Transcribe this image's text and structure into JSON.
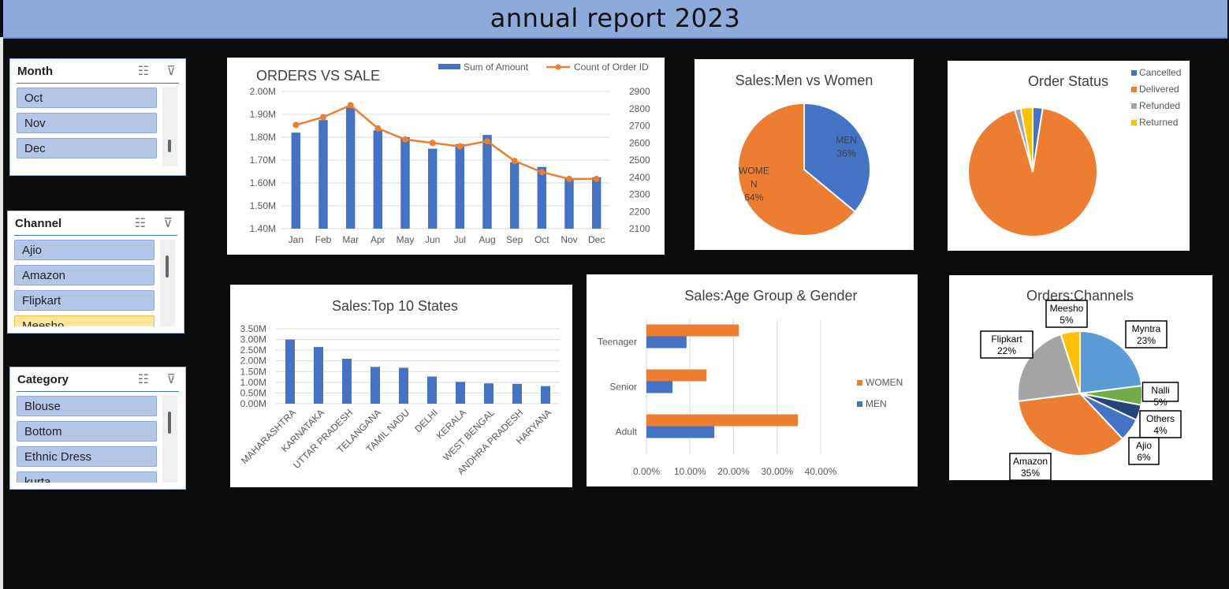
{
  "header": {
    "title": "annual report 2023"
  },
  "slicers": [
    {
      "title": "Month",
      "items": [
        "Oct",
        "Nov",
        "Dec"
      ],
      "selected": []
    },
    {
      "title": "Channel",
      "items": [
        "Ajio",
        "Amazon",
        "Flipkart",
        "Meesho"
      ],
      "selected": [
        "Meesho"
      ]
    },
    {
      "title": "Category",
      "items": [
        "Blouse",
        "Bottom",
        "Ethnic Dress",
        "kurta"
      ],
      "selected": []
    }
  ],
  "chart_data": [
    {
      "id": "orders-vs-sale",
      "type": "bar",
      "title": "ORDERS VS SALE",
      "categories": [
        "Jan",
        "Feb",
        "Mar",
        "Apr",
        "May",
        "Jun",
        "Jul",
        "Aug",
        "Sep",
        "Oct",
        "Nov",
        "Dec"
      ],
      "series": [
        {
          "name": "Sum of Amount",
          "kind": "bar",
          "axis": "left",
          "color": "#4472c4",
          "values": [
            1.82,
            1.875,
            1.93,
            1.83,
            1.8,
            1.75,
            1.77,
            1.81,
            1.69,
            1.67,
            1.62,
            1.625
          ]
        },
        {
          "name": "Count of Order ID",
          "kind": "line",
          "axis": "right",
          "color": "#ed7d31",
          "values": [
            2705,
            2750,
            2820,
            2685,
            2620,
            2600,
            2580,
            2610,
            2495,
            2430,
            2390,
            2390
          ]
        }
      ],
      "ylim": [
        1.4,
        2.0
      ],
      "yticks": [
        "1.40M",
        "1.50M",
        "1.60M",
        "1.70M",
        "1.80M",
        "1.90M",
        "2.00M"
      ],
      "y2lim": [
        2100,
        2900
      ],
      "y2ticks": [
        "2100",
        "2200",
        "2300",
        "2400",
        "2500",
        "2600",
        "2700",
        "2800",
        "2900"
      ],
      "legend": "top-right"
    },
    {
      "id": "men-vs-women",
      "type": "pie",
      "title": "Sales:Men vs Women",
      "slices": [
        {
          "label": "MEN",
          "value": 36,
          "display": "36%",
          "color": "#4472c4"
        },
        {
          "label": "WOMEN",
          "value": 64,
          "display": "64%",
          "color": "#ed7d31"
        }
      ]
    },
    {
      "id": "order-status",
      "type": "pie",
      "title": "Order Status",
      "slices": [
        {
          "label": "Cancelled",
          "value": 2.5,
          "color": "#4472c4"
        },
        {
          "label": "Delivered",
          "value": 93,
          "color": "#ed7d31"
        },
        {
          "label": "Refunded",
          "value": 1.5,
          "color": "#a5a5a5"
        },
        {
          "label": "Returned",
          "value": 3,
          "color": "#ffc000"
        }
      ],
      "legend": "right"
    },
    {
      "id": "top-states",
      "type": "bar",
      "title": "Sales:Top 10 States",
      "categories": [
        "MAHARASHTRA",
        "KARNATAKA",
        "UTTAR PRADESH",
        "TELANGANA",
        "TAMIL NADU",
        "DELHI",
        "KERALA",
        "WEST BENGAL",
        "ANDHRA PRADESH",
        "HARYANA"
      ],
      "values": [
        3.0,
        2.65,
        2.1,
        1.72,
        1.68,
        1.27,
        1.02,
        0.95,
        0.93,
        0.82
      ],
      "color": "#4472c4",
      "ylim": [
        0,
        3.5
      ],
      "yticks": [
        "0.00M",
        "0.50M",
        "1.00M",
        "1.50M",
        "2.00M",
        "2.50M",
        "3.00M",
        "3.50M"
      ]
    },
    {
      "id": "age-gender",
      "type": "bar",
      "orientation": "horizontal",
      "title": "Sales:Age Group & Gender",
      "categories": [
        "Teenager",
        "Senior",
        "Adult"
      ],
      "series": [
        {
          "name": "WOMEN",
          "color": "#ed7d31",
          "values": [
            21.2,
            13.8,
            34.8
          ]
        },
        {
          "name": "MEN",
          "color": "#4472c4",
          "values": [
            9.2,
            6.0,
            15.6
          ]
        }
      ],
      "xlim": [
        0,
        40
      ],
      "xticks": [
        "0.00%",
        "10.00%",
        "20.00%",
        "30.00%",
        "40.00%"
      ],
      "legend": "right"
    },
    {
      "id": "orders-channels",
      "type": "pie",
      "title": "Orders:Channels",
      "slices": [
        {
          "label": "Myntra",
          "value": 23,
          "display": "23%",
          "color": "#5b9bd5"
        },
        {
          "label": "Nalli",
          "value": 5,
          "display": "5%",
          "color": "#70ad47"
        },
        {
          "label": "Others",
          "value": 4,
          "display": "4%",
          "color": "#264478"
        },
        {
          "label": "Ajio",
          "value": 6,
          "display": "6%",
          "color": "#4472c4"
        },
        {
          "label": "Amazon",
          "value": 35,
          "display": "35%",
          "color": "#ed7d31"
        },
        {
          "label": "Flipkart",
          "value": 22,
          "display": "22%",
          "color": "#a5a5a5"
        },
        {
          "label": "Meesho",
          "value": 5,
          "display": "5%",
          "color": "#ffc000"
        }
      ]
    }
  ]
}
